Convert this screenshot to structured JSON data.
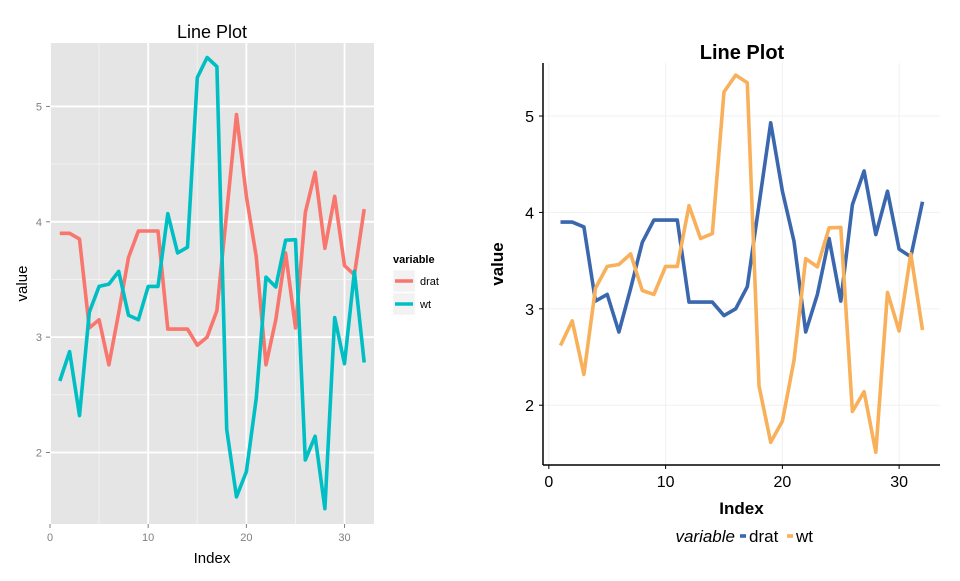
{
  "chart_data": [
    {
      "type": "line",
      "style": "ggplot-grey",
      "title": "Line Plot",
      "xlabel": "Index",
      "ylabel": "value",
      "xlim": [
        0,
        33
      ],
      "ylim": [
        1.38,
        5.55
      ],
      "xticks": [
        0,
        10,
        20,
        30
      ],
      "yticks": [
        2,
        3,
        4,
        5
      ],
      "grid": true,
      "legend": {
        "title": "variable",
        "position": "right"
      },
      "x": [
        1,
        2,
        3,
        4,
        5,
        6,
        7,
        8,
        9,
        10,
        11,
        12,
        13,
        14,
        15,
        16,
        17,
        18,
        19,
        20,
        21,
        22,
        23,
        24,
        25,
        26,
        27,
        28,
        29,
        30,
        31,
        32
      ],
      "series": [
        {
          "name": "drat",
          "color": "#F8766D",
          "values": [
            3.9,
            3.9,
            3.85,
            3.08,
            3.15,
            2.76,
            3.21,
            3.69,
            3.92,
            3.92,
            3.92,
            3.07,
            3.07,
            3.07,
            2.93,
            3.0,
            3.23,
            4.08,
            4.93,
            4.22,
            3.7,
            2.76,
            3.15,
            3.73,
            3.08,
            4.08,
            4.43,
            3.77,
            4.22,
            3.62,
            3.54,
            4.11
          ]
        },
        {
          "name": "wt",
          "color": "#00BFC4",
          "values": [
            2.62,
            2.875,
            2.32,
            3.215,
            3.44,
            3.46,
            3.57,
            3.19,
            3.15,
            3.44,
            3.44,
            4.07,
            3.73,
            3.78,
            5.25,
            5.424,
            5.345,
            2.2,
            1.615,
            1.835,
            2.465,
            3.52,
            3.435,
            3.84,
            3.845,
            1.935,
            2.14,
            1.513,
            3.17,
            2.77,
            3.57,
            2.78
          ]
        }
      ]
    },
    {
      "type": "line",
      "style": "classic-white",
      "title": "Line Plot",
      "xlabel": "Index",
      "ylabel": "value",
      "xlim": [
        -0.5,
        33.5
      ],
      "ylim": [
        1.38,
        5.55
      ],
      "xticks": [
        0,
        10,
        20,
        30
      ],
      "yticks": [
        2,
        3,
        4,
        5
      ],
      "grid": true,
      "legend": {
        "title": "variable",
        "position": "bottom"
      },
      "x": [
        1,
        2,
        3,
        4,
        5,
        6,
        7,
        8,
        9,
        10,
        11,
        12,
        13,
        14,
        15,
        16,
        17,
        18,
        19,
        20,
        21,
        22,
        23,
        24,
        25,
        26,
        27,
        28,
        29,
        30,
        31,
        32
      ],
      "series": [
        {
          "name": "drat",
          "color": "#3A67AE",
          "values": [
            3.9,
            3.9,
            3.85,
            3.08,
            3.15,
            2.76,
            3.21,
            3.69,
            3.92,
            3.92,
            3.92,
            3.07,
            3.07,
            3.07,
            2.93,
            3.0,
            3.23,
            4.08,
            4.93,
            4.22,
            3.7,
            2.76,
            3.15,
            3.73,
            3.08,
            4.08,
            4.43,
            3.77,
            4.22,
            3.62,
            3.54,
            4.11
          ]
        },
        {
          "name": "wt",
          "color": "#F8B05A",
          "values": [
            2.62,
            2.875,
            2.32,
            3.215,
            3.44,
            3.46,
            3.57,
            3.19,
            3.15,
            3.44,
            3.44,
            4.07,
            3.73,
            3.78,
            5.25,
            5.424,
            5.345,
            2.2,
            1.615,
            1.835,
            2.465,
            3.52,
            3.435,
            3.84,
            3.845,
            1.935,
            2.14,
            1.513,
            3.17,
            2.77,
            3.57,
            2.78
          ]
        }
      ]
    }
  ]
}
